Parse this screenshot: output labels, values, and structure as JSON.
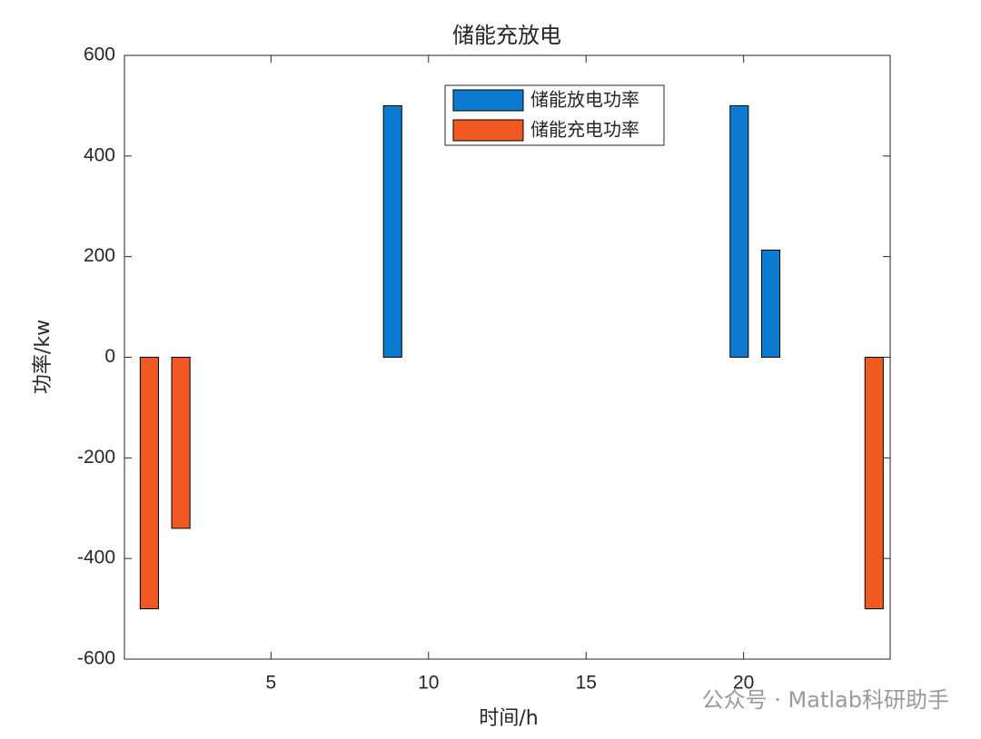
{
  "chart_data": {
    "type": "bar",
    "title": "储能充放电",
    "x_label": "时间/h",
    "y_label": "功率/kw",
    "categories": [
      1,
      2,
      3,
      4,
      5,
      6,
      7,
      8,
      9,
      10,
      11,
      12,
      13,
      14,
      15,
      16,
      17,
      18,
      19,
      20,
      21,
      22,
      23,
      24
    ],
    "series": [
      {
        "name": "储能放电功率",
        "color": "#0a7bd0",
        "values": [
          0,
          0,
          0,
          0,
          0,
          0,
          0,
          0,
          500,
          0,
          0,
          0,
          0,
          0,
          0,
          0,
          0,
          0,
          0,
          500,
          213,
          0,
          0,
          0
        ]
      },
      {
        "name": "储能充电功率",
        "color": "#f05a22",
        "values": [
          -500,
          -340,
          0,
          0,
          0,
          0,
          0,
          0,
          0,
          0,
          0,
          0,
          0,
          0,
          0,
          0,
          0,
          0,
          0,
          0,
          0,
          0,
          0,
          -500
        ]
      }
    ],
    "xlim": [
      0.35,
      24.65
    ],
    "xticks": [
      5,
      10,
      15,
      20
    ],
    "ylim": [
      -600,
      600
    ],
    "yticks": [
      -600,
      -400,
      -200,
      0,
      200,
      400,
      600
    ],
    "legend": "top-center",
    "watermark": "公众号 · Matlab科研助手"
  }
}
